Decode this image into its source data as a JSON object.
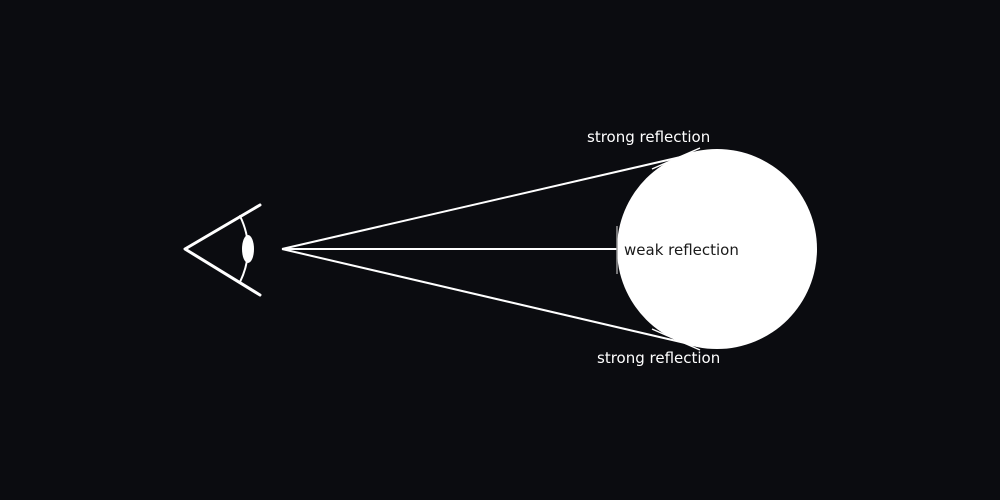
{
  "diagram": {
    "labels": {
      "top": "strong reflection",
      "middle": "weak reflection",
      "bottom": "strong reflection"
    },
    "colors": {
      "background": "#0b0c10",
      "stroke": "#ffffff",
      "sphere_fill": "#ffffff",
      "label_on_background": "#ffffff",
      "label_on_sphere": "#1a1a1a"
    },
    "icons": {
      "observer": "eye-icon",
      "object": "sphere"
    }
  }
}
